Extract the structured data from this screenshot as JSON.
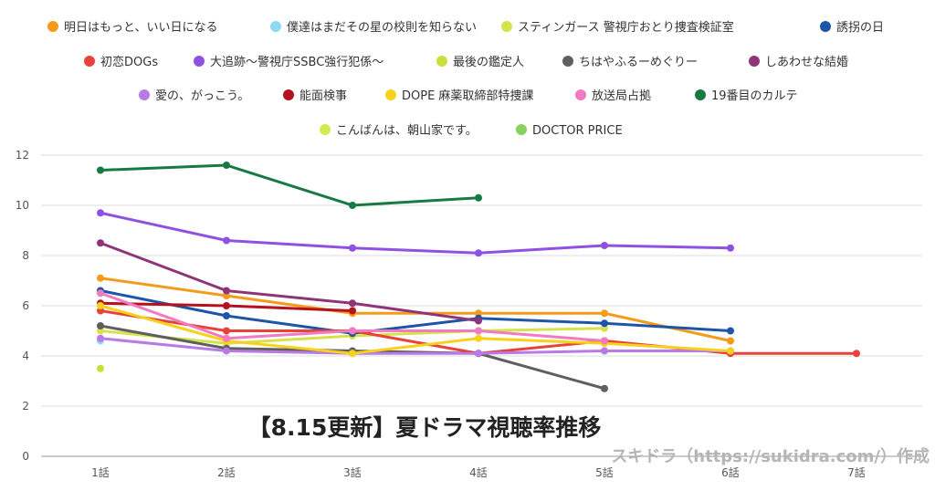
{
  "chart_data": {
    "type": "line",
    "title": "",
    "xlabel": "",
    "ylabel": "",
    "categories": [
      "1話",
      "2話",
      "3話",
      "4話",
      "5話",
      "6話",
      "7話"
    ],
    "yticks": [
      0,
      2,
      4,
      6,
      8,
      10,
      12
    ],
    "ylim": [
      0,
      12
    ],
    "grid": true,
    "legend_position": "top",
    "annotation": "【8.15更新】夏ドラマ視聴率推移",
    "credit": "スキドラ（https://sukidra.com/）作成",
    "series": [
      {
        "name": "明日はもっと、いい日になる",
        "color": "#f59b1c",
        "values": [
          7.1,
          6.4,
          5.7,
          5.7,
          5.7,
          4.6,
          null
        ]
      },
      {
        "name": "僕達はまだその星の校則を知らない",
        "color": "#8fd9f2",
        "values": [
          4.6,
          null,
          null,
          null,
          null,
          null,
          null
        ]
      },
      {
        "name": "スティンガース 警視庁おとり捜査検証室",
        "color": "#d6e24a",
        "values": [
          5.0,
          4.5,
          4.8,
          5.0,
          5.1,
          null,
          null
        ]
      },
      {
        "name": "誘拐の日",
        "color": "#1d55a8",
        "values": [
          6.6,
          5.6,
          4.9,
          5.5,
          5.3,
          5.0,
          null
        ]
      },
      {
        "name": "初恋DOGs",
        "color": "#e8423a",
        "values": [
          5.8,
          5.0,
          5.0,
          4.1,
          4.6,
          4.1,
          4.1
        ]
      },
      {
        "name": "大追跡〜警視庁SSBC強行犯係〜",
        "color": "#8f52e0",
        "values": [
          9.7,
          8.6,
          8.3,
          8.1,
          8.4,
          8.3,
          null
        ]
      },
      {
        "name": "最後の鑑定人",
        "color": "#c9df3c",
        "values": [
          3.5,
          null,
          null,
          null,
          null,
          null,
          null
        ]
      },
      {
        "name": "ちはやふるーめぐりー",
        "color": "#5f5f5f",
        "values": [
          5.2,
          4.3,
          4.2,
          4.1,
          2.7,
          null,
          null
        ]
      },
      {
        "name": "しあわせな結婚",
        "color": "#8e3478",
        "values": [
          8.5,
          6.6,
          6.1,
          5.4,
          null,
          null,
          null
        ]
      },
      {
        "name": "愛の、がっこう。",
        "color": "#b97ae6",
        "values": [
          4.7,
          4.2,
          4.1,
          4.1,
          4.2,
          4.2,
          null
        ]
      },
      {
        "name": "能面検事",
        "color": "#b3121e",
        "values": [
          6.1,
          6.0,
          5.8,
          null,
          null,
          null,
          null
        ]
      },
      {
        "name": "DOPE 麻薬取締部特捜課",
        "color": "#f7d11c",
        "values": [
          6.0,
          4.6,
          4.1,
          4.7,
          4.5,
          4.2,
          null
        ]
      },
      {
        "name": "放送局占拠",
        "color": "#f27ac0",
        "values": [
          6.5,
          4.7,
          5.0,
          5.0,
          4.6,
          null,
          null
        ]
      },
      {
        "name": "19番目のカルテ",
        "color": "#177a43",
        "values": [
          11.4,
          11.6,
          10.0,
          10.3,
          null,
          null,
          null
        ]
      },
      {
        "name": "こんばんは、朝山家です。",
        "color": "#d4ea50",
        "values": [
          null,
          null,
          null,
          null,
          null,
          null,
          null
        ]
      },
      {
        "name": "DOCTOR PRICE",
        "color": "#86d160",
        "values": [
          null,
          null,
          null,
          null,
          null,
          null,
          null
        ]
      }
    ]
  }
}
